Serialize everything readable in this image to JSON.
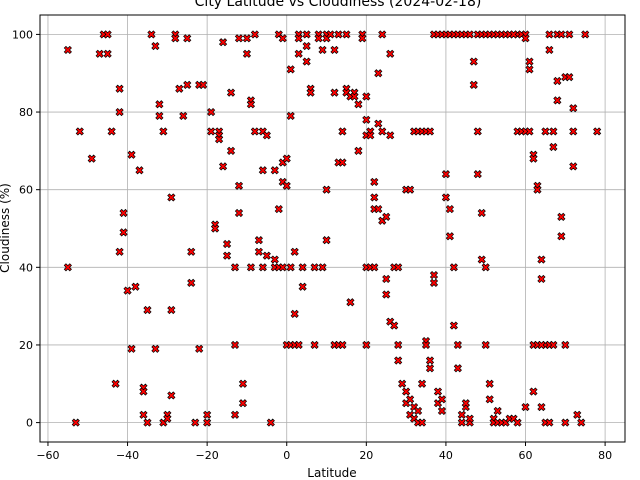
{
  "chart_data": {
    "type": "scatter",
    "title": "City Latitude vs Cloudiness (2024-02-18)",
    "xlabel": "Latitude",
    "ylabel": "Cloudiness (%)",
    "xlim": [
      -62,
      85
    ],
    "ylim": [
      -5,
      105
    ],
    "xticks": [
      -60,
      -40,
      -20,
      0,
      20,
      40,
      60,
      80
    ],
    "yticks": [
      0,
      20,
      40,
      60,
      80,
      100
    ],
    "grid": true,
    "marker": {
      "shape": "X",
      "fill": "#ff0000",
      "edge": "#000000"
    },
    "series": [
      {
        "points": [
          [
            -55,
            96
          ],
          [
            -55,
            40
          ],
          [
            -53,
            0
          ],
          [
            -52,
            75
          ],
          [
            -49,
            68
          ],
          [
            -47,
            95
          ],
          [
            -46,
            100
          ],
          [
            -45,
            100
          ],
          [
            -45,
            95
          ],
          [
            -44,
            75
          ],
          [
            -43,
            10
          ],
          [
            -42,
            86
          ],
          [
            -42,
            80
          ],
          [
            -42,
            44
          ],
          [
            -41,
            54
          ],
          [
            -41,
            49
          ],
          [
            -40,
            34
          ],
          [
            -39,
            19
          ],
          [
            -39,
            69
          ],
          [
            -38,
            35
          ],
          [
            -37,
            65
          ],
          [
            -36,
            9
          ],
          [
            -36,
            8
          ],
          [
            -36,
            2
          ],
          [
            -35,
            0
          ],
          [
            -35,
            29
          ],
          [
            -34,
            100
          ],
          [
            -33,
            97
          ],
          [
            -33,
            19
          ],
          [
            -32,
            82
          ],
          [
            -32,
            79
          ],
          [
            -31,
            75
          ],
          [
            -31,
            0
          ],
          [
            -30,
            2
          ],
          [
            -30,
            1
          ],
          [
            -29,
            7
          ],
          [
            -29,
            58
          ],
          [
            -29,
            29
          ],
          [
            -28,
            100
          ],
          [
            -28,
            99
          ],
          [
            -27,
            86
          ],
          [
            -26,
            79
          ],
          [
            -25,
            99
          ],
          [
            -25,
            87
          ],
          [
            -24,
            44
          ],
          [
            -24,
            36
          ],
          [
            -23,
            0
          ],
          [
            -22,
            87
          ],
          [
            -22,
            19
          ],
          [
            -21,
            87
          ],
          [
            -20,
            2
          ],
          [
            -20,
            0
          ],
          [
            -19,
            80
          ],
          [
            -19,
            75
          ],
          [
            -18,
            51
          ],
          [
            -18,
            50
          ],
          [
            -17,
            75
          ],
          [
            -17,
            74
          ],
          [
            -17,
            73
          ],
          [
            -16,
            98
          ],
          [
            -16,
            66
          ],
          [
            -15,
            46
          ],
          [
            -15,
            43
          ],
          [
            -14,
            85
          ],
          [
            -14,
            70
          ],
          [
            -13,
            40
          ],
          [
            -13,
            20
          ],
          [
            -13,
            2
          ],
          [
            -12,
            99
          ],
          [
            -12,
            54
          ],
          [
            -12,
            61
          ],
          [
            -11,
            10
          ],
          [
            -11,
            5
          ],
          [
            -10,
            99
          ],
          [
            -10,
            95
          ],
          [
            -9,
            83
          ],
          [
            -9,
            82
          ],
          [
            -9,
            40
          ],
          [
            -8,
            100
          ],
          [
            -8,
            75
          ],
          [
            -7,
            47
          ],
          [
            -7,
            44
          ],
          [
            -6,
            75
          ],
          [
            -6,
            65
          ],
          [
            -6,
            40
          ],
          [
            -5,
            74
          ],
          [
            -5,
            43
          ],
          [
            -4,
            0
          ],
          [
            -3,
            65
          ],
          [
            -3,
            42
          ],
          [
            -2,
            100
          ],
          [
            -2,
            55
          ],
          [
            -1,
            99
          ],
          [
            -1,
            67
          ],
          [
            -1,
            62
          ],
          [
            0,
            68
          ],
          [
            0,
            61
          ],
          [
            1,
            91
          ],
          [
            1,
            79
          ],
          [
            1,
            40
          ],
          [
            2,
            44
          ],
          [
            2,
            28
          ],
          [
            3,
            100
          ],
          [
            3,
            99
          ],
          [
            3,
            95
          ],
          [
            4,
            40
          ],
          [
            4,
            35
          ],
          [
            5,
            100
          ],
          [
            5,
            97
          ],
          [
            5,
            93
          ],
          [
            6,
            86
          ],
          [
            6,
            85
          ],
          [
            7,
            40
          ],
          [
            7,
            20
          ],
          [
            8,
            100
          ],
          [
            8,
            99
          ],
          [
            9,
            96
          ],
          [
            9,
            40
          ],
          [
            10,
            100
          ],
          [
            10,
            99
          ],
          [
            10,
            60
          ],
          [
            10,
            47
          ],
          [
            11,
            100
          ],
          [
            12,
            96
          ],
          [
            12,
            85
          ],
          [
            13,
            100
          ],
          [
            13,
            67
          ],
          [
            14,
            75
          ],
          [
            14,
            67
          ],
          [
            15,
            100
          ],
          [
            15,
            86
          ],
          [
            15,
            85
          ],
          [
            16,
            84
          ],
          [
            16,
            31
          ],
          [
            17,
            85
          ],
          [
            17,
            84
          ],
          [
            18,
            82
          ],
          [
            18,
            70
          ],
          [
            19,
            100
          ],
          [
            19,
            99
          ],
          [
            20,
            84
          ],
          [
            20,
            78
          ],
          [
            20,
            74
          ],
          [
            20,
            20
          ],
          [
            21,
            75
          ],
          [
            21,
            74
          ],
          [
            22,
            62
          ],
          [
            22,
            58
          ],
          [
            22,
            55
          ],
          [
            23,
            90
          ],
          [
            23,
            77
          ],
          [
            23,
            55
          ],
          [
            24,
            100
          ],
          [
            24,
            75
          ],
          [
            24,
            52
          ],
          [
            25,
            53
          ],
          [
            25,
            37
          ],
          [
            25,
            33
          ],
          [
            26,
            95
          ],
          [
            26,
            74
          ],
          [
            26,
            26
          ],
          [
            27,
            40
          ],
          [
            27,
            25
          ],
          [
            28,
            40
          ],
          [
            28,
            20
          ],
          [
            28,
            16
          ],
          [
            29,
            10
          ],
          [
            30,
            8
          ],
          [
            30,
            5
          ],
          [
            31,
            6
          ],
          [
            31,
            2
          ],
          [
            32,
            4
          ],
          [
            32,
            1
          ],
          [
            33,
            3
          ],
          [
            33,
            0
          ],
          [
            34,
            0
          ],
          [
            34,
            10
          ],
          [
            35,
            21
          ],
          [
            35,
            20
          ],
          [
            36,
            16
          ],
          [
            36,
            14
          ],
          [
            37,
            38
          ],
          [
            37,
            36
          ],
          [
            38,
            8
          ],
          [
            38,
            5
          ],
          [
            39,
            6
          ],
          [
            39,
            3
          ],
          [
            40,
            64
          ],
          [
            40,
            58
          ],
          [
            41,
            55
          ],
          [
            41,
            48
          ],
          [
            42,
            40
          ],
          [
            42,
            25
          ],
          [
            43,
            20
          ],
          [
            43,
            14
          ],
          [
            44,
            0
          ],
          [
            44,
            2
          ],
          [
            45,
            4
          ],
          [
            45,
            5
          ],
          [
            46,
            0
          ],
          [
            46,
            1
          ],
          [
            47,
            93
          ],
          [
            47,
            87
          ],
          [
            48,
            75
          ],
          [
            48,
            64
          ],
          [
            49,
            54
          ],
          [
            49,
            42
          ],
          [
            50,
            40
          ],
          [
            50,
            20
          ],
          [
            51,
            10
          ],
          [
            51,
            6
          ],
          [
            52,
            1
          ],
          [
            52,
            0
          ],
          [
            53,
            3
          ],
          [
            53,
            0
          ],
          [
            54,
            0
          ],
          [
            55,
            0
          ],
          [
            56,
            1
          ],
          [
            57,
            1
          ],
          [
            58,
            0
          ],
          [
            58,
            100
          ],
          [
            59,
            100
          ],
          [
            60,
            100
          ],
          [
            60,
            99
          ],
          [
            61,
            93
          ],
          [
            61,
            91
          ],
          [
            62,
            69
          ],
          [
            62,
            68
          ],
          [
            63,
            61
          ],
          [
            63,
            60
          ],
          [
            64,
            42
          ],
          [
            64,
            37
          ],
          [
            65,
            20
          ],
          [
            65,
            0
          ],
          [
            66,
            100
          ],
          [
            66,
            96
          ],
          [
            67,
            75
          ],
          [
            67,
            71
          ],
          [
            68,
            88
          ],
          [
            68,
            83
          ],
          [
            69,
            53
          ],
          [
            69,
            48
          ],
          [
            70,
            20
          ],
          [
            70,
            0
          ],
          [
            71,
            100
          ],
          [
            72,
            81
          ],
          [
            72,
            75
          ],
          [
            73,
            2
          ],
          [
            74,
            0
          ],
          [
            75,
            100
          ],
          [
            -3,
            40
          ],
          [
            -2,
            40
          ],
          [
            -1,
            40
          ],
          [
            0,
            20
          ],
          [
            1,
            20
          ],
          [
            2,
            20
          ],
          [
            3,
            20
          ],
          [
            12,
            20
          ],
          [
            13,
            20
          ],
          [
            14,
            20
          ],
          [
            20,
            40
          ],
          [
            21,
            40
          ],
          [
            22,
            40
          ],
          [
            30,
            60
          ],
          [
            31,
            60
          ],
          [
            32,
            75
          ],
          [
            33,
            75
          ],
          [
            34,
            75
          ],
          [
            35,
            75
          ],
          [
            36,
            75
          ],
          [
            37,
            100
          ],
          [
            38,
            100
          ],
          [
            39,
            100
          ],
          [
            40,
            100
          ],
          [
            41,
            100
          ],
          [
            42,
            100
          ],
          [
            43,
            100
          ],
          [
            44,
            100
          ],
          [
            45,
            100
          ],
          [
            46,
            100
          ],
          [
            48,
            100
          ],
          [
            49,
            100
          ],
          [
            50,
            100
          ],
          [
            51,
            100
          ],
          [
            52,
            100
          ],
          [
            53,
            100
          ],
          [
            54,
            100
          ],
          [
            55,
            100
          ],
          [
            56,
            100
          ],
          [
            57,
            100
          ],
          [
            58,
            75
          ],
          [
            59,
            75
          ],
          [
            60,
            75
          ],
          [
            61,
            75
          ],
          [
            62,
            20
          ],
          [
            63,
            20
          ],
          [
            64,
            20
          ],
          [
            65,
            75
          ],
          [
            66,
            20
          ],
          [
            67,
            20
          ],
          [
            68,
            100
          ],
          [
            69,
            100
          ],
          [
            70,
            89
          ],
          [
            71,
            89
          ],
          [
            72,
            66
          ],
          [
            78,
            75
          ],
          [
            60,
            4
          ],
          [
            62,
            8
          ],
          [
            64,
            4
          ],
          [
            66,
            0
          ]
        ]
      }
    ]
  }
}
